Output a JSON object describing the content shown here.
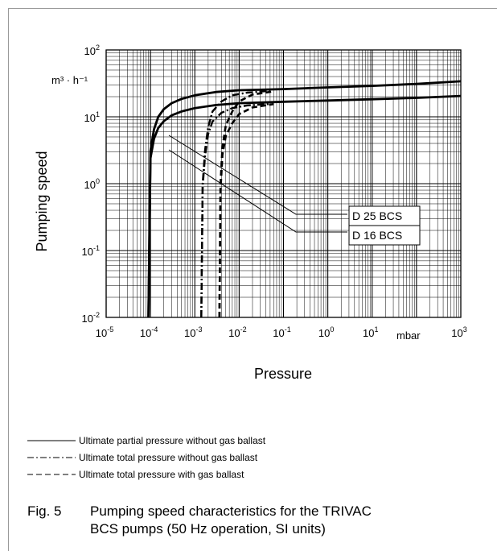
{
  "chart_data": {
    "type": "line",
    "ylabel": "Pumping speed",
    "yunit": "m³ · h⁻¹",
    "xlabel": "Pressure",
    "xunit": "mbar",
    "x_scale": "log",
    "y_scale": "log",
    "xlim": [
      1e-05,
      1000
    ],
    "ylim": [
      0.01,
      100
    ],
    "x_ticks": [
      {
        "base": "10",
        "exp": "-5"
      },
      {
        "base": "10",
        "exp": "-4"
      },
      {
        "base": "10",
        "exp": "-3"
      },
      {
        "base": "10",
        "exp": "-2"
      },
      {
        "base": "10",
        "exp": "-1"
      },
      {
        "base": "10",
        "exp": "0"
      },
      {
        "base": "10",
        "exp": "1"
      },
      {
        "base": "10",
        "exp": "3"
      }
    ],
    "y_ticks": [
      {
        "base": "10",
        "exp": "2"
      },
      {
        "base": "10",
        "exp": "1"
      },
      {
        "base": "10",
        "exp": "0"
      },
      {
        "base": "10",
        "exp": "-1"
      },
      {
        "base": "10",
        "exp": "-2"
      }
    ],
    "grid": true,
    "annotations": [
      "D 25 BCS",
      "D 16 BCS"
    ],
    "series": [
      {
        "pump": "D 25 BCS",
        "style": "solid",
        "x": [
          9e-05,
          0.0001,
          0.00012,
          0.00015,
          0.0002,
          0.0003,
          0.0005,
          0.001,
          0.003,
          0.01,
          0.1,
          1,
          10,
          100,
          1000
        ],
        "y": [
          0.01,
          3.1,
          6.5,
          10,
          13,
          16,
          18.5,
          21,
          23.5,
          25,
          26,
          27.5,
          29,
          31,
          34
        ]
      },
      {
        "pump": "D 16 BCS",
        "style": "solid",
        "x": [
          9e-05,
          0.0001,
          0.00012,
          0.00015,
          0.0002,
          0.0003,
          0.0005,
          0.001,
          0.003,
          0.01,
          0.1,
          1,
          10,
          100,
          1000
        ],
        "y": [
          0.01,
          2.4,
          4.7,
          6.8,
          8.6,
          10.5,
          12,
          13.5,
          15,
          16,
          16.8,
          17.5,
          18.3,
          19.2,
          20.5
        ]
      },
      {
        "pump": "D 25 BCS",
        "style": "dash-dot",
        "x": [
          0.0014,
          0.0015,
          0.0017,
          0.002,
          0.0025,
          0.004,
          0.007,
          0.015,
          0.05
        ],
        "y": [
          0.01,
          1.0,
          3.2,
          7,
          12,
          17,
          21,
          23,
          24.5
        ]
      },
      {
        "pump": "D 16 BCS",
        "style": "dash-dot",
        "x": [
          0.0014,
          0.0015,
          0.0017,
          0.002,
          0.0025,
          0.004,
          0.007,
          0.015,
          0.05
        ],
        "y": [
          0.01,
          0.9,
          2.6,
          5.5,
          8.5,
          11.5,
          13.5,
          14.8,
          15.6
        ]
      },
      {
        "pump": "D 25 BCS",
        "style": "dashed",
        "x": [
          0.0036,
          0.0038,
          0.0042,
          0.005,
          0.007,
          0.01,
          0.02,
          0.06
        ],
        "y": [
          0.01,
          1.0,
          3.5,
          7.5,
          12,
          17,
          21.5,
          24
        ]
      },
      {
        "pump": "D 16 BCS",
        "style": "dashed",
        "x": [
          0.0036,
          0.0038,
          0.0042,
          0.005,
          0.007,
          0.01,
          0.02,
          0.06
        ],
        "y": [
          0.01,
          0.8,
          2.7,
          5.2,
          8,
          11,
          13.8,
          15.5
        ]
      }
    ]
  },
  "legend": [
    {
      "style": "solid",
      "label": "Ultimate partial pressure without gas ballast"
    },
    {
      "style": "dash-dot",
      "label": "Ultimate total pressure without gas ballast"
    },
    {
      "style": "dashed",
      "label": "Ultimate total pressure with gas ballast"
    }
  ],
  "caption": {
    "number": "Fig. 5",
    "text": "Pumping speed characteristics for the TRIVAC BCS pumps (50 Hz operation, SI units)"
  }
}
